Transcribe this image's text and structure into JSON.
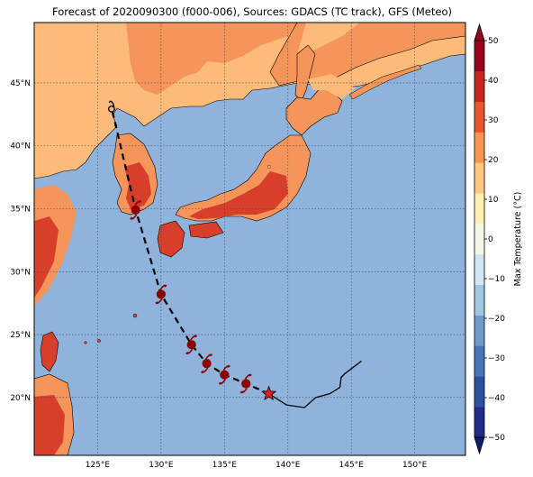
{
  "title": "Forecast of 2020090300 (f000-006), Sources: GDACS (TC track), GFS (Meteo)",
  "map": {
    "lon_range": [
      120.0,
      154.0
    ],
    "lat_range": [
      15.4,
      49.8
    ],
    "lon_ticks": [
      125,
      130,
      135,
      140,
      145,
      150
    ],
    "lat_ticks": [
      20,
      25,
      30,
      35,
      40,
      45
    ],
    "lon_tick_labels": [
      "125°E",
      "130°E",
      "135°E",
      "140°E",
      "145°E",
      "150°E"
    ],
    "lat_tick_labels": [
      "20°N",
      "25°N",
      "30°N",
      "35°N",
      "40°N",
      "45°N"
    ],
    "gridlines": true,
    "ocean_color": "#8fb3da"
  },
  "colorbar": {
    "label": "Max Temperature (°C)",
    "ticks": [
      -50,
      -40,
      -30,
      -20,
      -10,
      0,
      10,
      20,
      30,
      40,
      50
    ],
    "tick_labels": [
      "−50",
      "−40",
      "−30",
      "−20",
      "−10",
      "0",
      "10",
      "20",
      "30",
      "40",
      "50"
    ],
    "range": [
      -50,
      50
    ],
    "colors": [
      "#232a86",
      "#2c4fa0",
      "#4575b4",
      "#6e9bc9",
      "#a0c6e0",
      "#d0e7f1",
      "#f1f9e6",
      "#fff0b0",
      "#fdc781",
      "#f79552",
      "#e5562f",
      "#c5271e",
      "#97041e"
    ]
  },
  "track": {
    "points": [
      {
        "lon": 138.5,
        "lat": 20.3,
        "marker": "star"
      },
      {
        "lon": 136.7,
        "lat": 21.1,
        "marker": "typhoon"
      },
      {
        "lon": 135.0,
        "lat": 21.8,
        "marker": "typhoon"
      },
      {
        "lon": 133.6,
        "lat": 22.7,
        "marker": "typhoon"
      },
      {
        "lon": 132.4,
        "lat": 24.2,
        "marker": "typhoon"
      },
      {
        "lon": 130.0,
        "lat": 28.2,
        "marker": "typhoon"
      },
      {
        "lon": 128.0,
        "lat": 34.9,
        "marker": "typhoon"
      },
      {
        "lon": 126.1,
        "lat": 43.0,
        "marker": "ex-typhoon"
      }
    ],
    "past_track": [
      [
        145.8,
        22.9
      ],
      [
        144.5,
        21.9
      ],
      [
        144.2,
        21.6
      ],
      [
        144.1,
        20.8
      ],
      [
        143.3,
        20.3
      ],
      [
        142.2,
        20.0
      ],
      [
        141.3,
        19.2
      ],
      [
        139.9,
        19.4
      ],
      [
        138.5,
        20.3
      ]
    ],
    "track_color": "#000000",
    "marker_color": "#8b0000",
    "star_color": "#e8201a"
  },
  "land": {
    "color_20_30": "#f6955a",
    "color_10_20": "#fdbb79",
    "color_30_40": "#d73f2a"
  }
}
